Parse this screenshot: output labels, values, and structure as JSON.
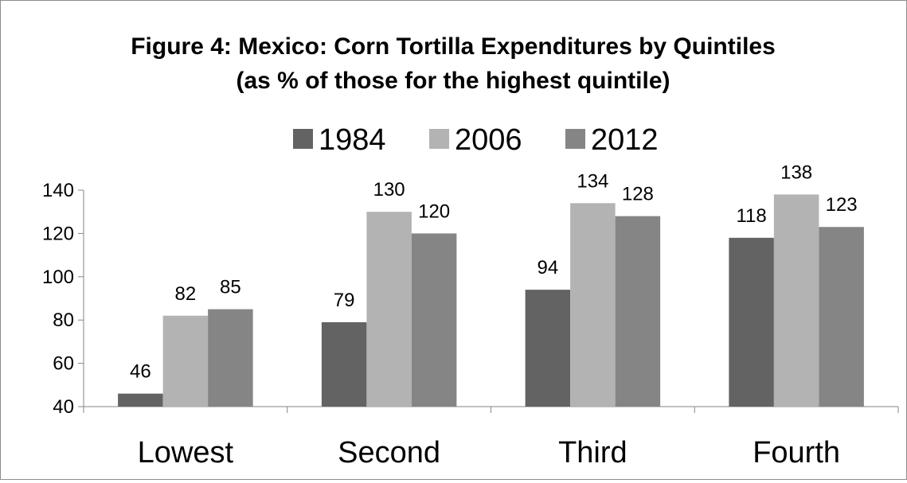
{
  "chart_data": {
    "type": "bar",
    "title": "Figure 4: Mexico: Corn Tortilla Expenditures by Quintiles",
    "subtitle": "(as % of those for the highest quintile)",
    "categories": [
      "Lowest",
      "Second",
      "Third",
      "Fourth"
    ],
    "series": [
      {
        "name": "1984",
        "color": "#636363",
        "values": [
          46,
          79,
          94,
          118
        ]
      },
      {
        "name": "2006",
        "color": "#b3b3b3",
        "values": [
          82,
          130,
          134,
          138
        ]
      },
      {
        "name": "2012",
        "color": "#858585",
        "values": [
          85,
          120,
          128,
          123
        ]
      }
    ],
    "ylim": [
      40,
      140
    ],
    "yticks": [
      40,
      60,
      80,
      100,
      120,
      140
    ],
    "grid": false,
    "legend_position": "top",
    "data_labels": true
  }
}
